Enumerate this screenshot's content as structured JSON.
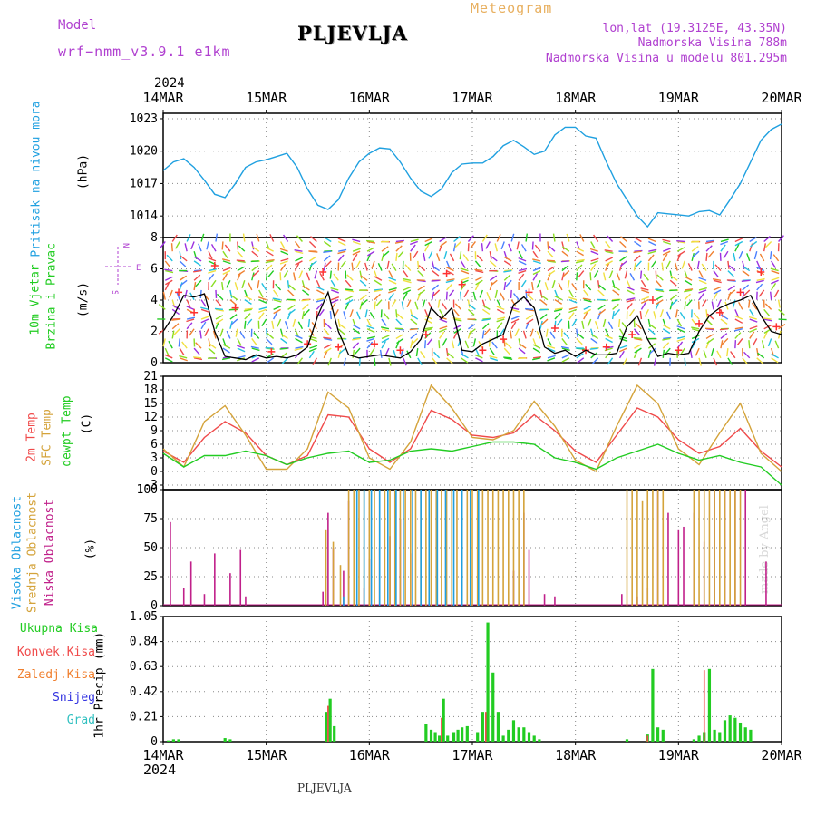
{
  "header": {
    "model_label": "Model",
    "model_name": "wrf−nmm_v3.9.1  e1km",
    "station": "PLJEVLJA",
    "chart_kind": "Meteogram",
    "coords": "lon,lat (19.3125E, 43.35N)",
    "elevation": "Nadmorska Visina 788m",
    "model_elevation": "Nadmorska Visina u modelu 801.295m",
    "year_top": "2024",
    "year_bottom": "2024",
    "footer_station": "PLJEVLJA",
    "signature": "made by Angel"
  },
  "colors": {
    "pressure": "#1fa0e0",
    "temp2m": "#f04a4a",
    "sfc": "#d4a33a",
    "dewpt": "#22cc22",
    "high_cloud": "#1fa0e0",
    "mid_cloud": "#d4a33a",
    "low_cloud": "#c0208a",
    "total_precip": "#22cc22",
    "conv_precip": "#f04a4a",
    "frz_precip": "#f08030",
    "snow": "#3030e0",
    "grad": "#30c0c0",
    "magenta_text": "#b040d0",
    "orange_text": "#e8b060"
  },
  "chart_data": [
    {
      "panel": "pressure",
      "type": "line",
      "ylabel_a": "Pritisak na nivou mora",
      "ylabel_b": "(hPa)",
      "x_ticks_top": [
        "14MAR",
        "15MAR",
        "16MAR",
        "17MAR",
        "18MAR",
        "19MAR",
        "20MAR"
      ],
      "ylim": [
        1012,
        1023.5
      ],
      "yticks": [
        1014,
        1017,
        1020,
        1023
      ],
      "grid": true,
      "series": [
        {
          "x": [
            0,
            0.1,
            0.2,
            0.3,
            0.4,
            0.5,
            0.6,
            0.7,
            0.8,
            0.9,
            1.0,
            1.1,
            1.2,
            1.3,
            1.4,
            1.5,
            1.6,
            1.7,
            1.8,
            1.9,
            2.0,
            2.1,
            2.2,
            2.3,
            2.4,
            2.5,
            2.6,
            2.7,
            2.8,
            2.9,
            3.0,
            3.1,
            3.2,
            3.3,
            3.4,
            3.5,
            3.6,
            3.7,
            3.8,
            3.9,
            4.0,
            4.1,
            4.2,
            4.3,
            4.4,
            4.5,
            4.6,
            4.7,
            4.8,
            4.9,
            5.0,
            5.1,
            5.2,
            5.3,
            5.4,
            5.5,
            5.6,
            5.7,
            5.8,
            5.9,
            6.0
          ],
          "y": [
            1018.2,
            1019.0,
            1019.3,
            1018.5,
            1017.3,
            1016.0,
            1015.7,
            1017.0,
            1018.5,
            1019.0,
            1019.2,
            1019.5,
            1019.8,
            1018.5,
            1016.5,
            1015.0,
            1014.6,
            1015.5,
            1017.5,
            1019.0,
            1019.8,
            1020.3,
            1020.2,
            1019.0,
            1017.5,
            1016.3,
            1015.8,
            1016.5,
            1018.0,
            1018.8,
            1018.9,
            1018.9,
            1019.5,
            1020.5,
            1021.0,
            1020.4,
            1019.7,
            1020.0,
            1021.5,
            1022.2,
            1022.2,
            1021.4,
            1021.2,
            1019.0,
            1017.0,
            1015.5,
            1014.0,
            1013.0,
            1014.3,
            1014.2,
            1014.1,
            1014.0,
            1014.4,
            1014.5,
            1014.1,
            1015.5,
            1017.0,
            1019.0,
            1021.0,
            1022.0,
            1022.5
          ]
        }
      ]
    },
    {
      "panel": "wind",
      "type": "line",
      "ylabel_a": "10m Vjetar",
      "ylabel_b": "Brzina i Pravac",
      "ylabel_c": "(m/s)",
      "compass": [
        "N",
        "W",
        "E",
        "S"
      ],
      "ylim": [
        0,
        8
      ],
      "yticks": [
        0,
        2,
        4,
        6,
        8
      ],
      "grid": true,
      "series": [
        {
          "name": "speed",
          "x": [
            0,
            0.1,
            0.2,
            0.3,
            0.4,
            0.5,
            0.6,
            0.7,
            0.8,
            0.9,
            1.0,
            1.1,
            1.2,
            1.3,
            1.4,
            1.5,
            1.6,
            1.7,
            1.8,
            1.9,
            2.0,
            2.1,
            2.2,
            2.3,
            2.4,
            2.5,
            2.6,
            2.7,
            2.8,
            2.9,
            3.0,
            3.1,
            3.2,
            3.3,
            3.4,
            3.5,
            3.6,
            3.7,
            3.8,
            3.9,
            4.0,
            4.1,
            4.2,
            4.3,
            4.4,
            4.5,
            4.6,
            4.7,
            4.8,
            4.9,
            5.0,
            5.1,
            5.2,
            5.3,
            5.4,
            5.5,
            5.6,
            5.7,
            5.8,
            5.9,
            6.0
          ],
          "y": [
            2.0,
            3.0,
            4.3,
            4.2,
            4.4,
            2.0,
            0.4,
            0.3,
            0.2,
            0.5,
            0.3,
            0.4,
            0.3,
            0.5,
            1.0,
            3.0,
            4.5,
            2.0,
            0.5,
            0.3,
            0.4,
            0.5,
            0.4,
            0.3,
            0.7,
            1.5,
            3.5,
            2.8,
            3.5,
            0.8,
            0.7,
            1.2,
            1.5,
            1.8,
            3.7,
            4.2,
            3.5,
            1.0,
            0.6,
            0.8,
            0.4,
            0.8,
            0.5,
            0.5,
            0.6,
            2.3,
            3.0,
            1.5,
            0.4,
            0.6,
            0.5,
            0.6,
            2.0,
            3.0,
            3.5,
            3.8,
            4.0,
            4.3,
            3.0,
            2.0,
            1.8
          ]
        },
        {
          "name": "gust",
          "x": [
            0.15,
            0.3,
            0.5,
            0.7,
            1.05,
            1.4,
            1.55,
            1.7,
            2.05,
            2.3,
            2.55,
            2.75,
            2.9,
            3.1,
            3.3,
            3.55,
            3.8,
            4.1,
            4.3,
            4.55,
            4.75,
            5.0,
            5.2,
            5.4,
            5.6,
            5.8,
            5.95
          ],
          "y": [
            4.5,
            3.2,
            6.2,
            3.5,
            0.7,
            1.2,
            5.8,
            1.0,
            1.2,
            0.8,
            1.8,
            5.7,
            5.0,
            0.8,
            1.5,
            4.5,
            2.2,
            0.8,
            1.0,
            1.8,
            4.0,
            0.8,
            2.5,
            3.2,
            4.5,
            5.8,
            2.3
          ]
        }
      ]
    },
    {
      "panel": "temperature",
      "type": "line",
      "ylabel_a": "2m Temp",
      "ylabel_b": "SFC Temp",
      "ylabel_c": "dewpt Temp",
      "ylabel_d": "(C)",
      "ylim": [
        -4,
        21
      ],
      "yticks": [
        -3,
        0,
        3,
        6,
        9,
        12,
        15,
        18,
        21
      ],
      "grid": true,
      "series": [
        {
          "name": "2m Temp",
          "x": [
            0,
            0.2,
            0.4,
            0.6,
            0.8,
            1.0,
            1.2,
            1.4,
            1.6,
            1.8,
            2.0,
            2.2,
            2.4,
            2.6,
            2.8,
            3.0,
            3.2,
            3.4,
            3.6,
            3.8,
            4.0,
            4.2,
            4.4,
            4.6,
            4.8,
            5.0,
            5.2,
            5.4,
            5.6,
            5.8,
            6.0
          ],
          "y": [
            4.5,
            2.0,
            7.5,
            11.0,
            8.5,
            3.5,
            1.5,
            3.5,
            12.5,
            12.0,
            5.0,
            2.0,
            5.0,
            13.5,
            11.5,
            8.0,
            7.5,
            8.5,
            12.5,
            9.0,
            4.5,
            2.0,
            8.0,
            14.0,
            12.0,
            7.0,
            4.0,
            5.5,
            9.5,
            4.5,
            1.0
          ]
        },
        {
          "name": "SFC Temp",
          "x": [
            0,
            0.2,
            0.4,
            0.6,
            0.8,
            1.0,
            1.2,
            1.4,
            1.6,
            1.8,
            2.0,
            2.2,
            2.4,
            2.6,
            2.8,
            3.0,
            3.2,
            3.4,
            3.6,
            3.8,
            4.0,
            4.2,
            4.4,
            4.6,
            4.8,
            5.0,
            5.2,
            5.4,
            5.6,
            5.8,
            6.0
          ],
          "y": [
            5.0,
            1.0,
            11.0,
            14.5,
            8.0,
            0.5,
            0.5,
            5.0,
            17.5,
            14.0,
            3.0,
            0.5,
            6.5,
            19.0,
            14.0,
            7.5,
            7.0,
            9.0,
            15.5,
            10.0,
            2.5,
            0.0,
            10.0,
            19.0,
            15.0,
            5.0,
            1.5,
            8.5,
            15.0,
            4.0,
            0.0
          ]
        },
        {
          "name": "dewpt Temp",
          "x": [
            0,
            0.2,
            0.4,
            0.6,
            0.8,
            1.0,
            1.2,
            1.4,
            1.6,
            1.8,
            2.0,
            2.2,
            2.4,
            2.6,
            2.8,
            3.0,
            3.2,
            3.4,
            3.6,
            3.8,
            4.0,
            4.2,
            4.4,
            4.6,
            4.8,
            5.0,
            5.2,
            5.4,
            5.6,
            5.8,
            6.0
          ],
          "y": [
            4.0,
            1.0,
            3.5,
            3.5,
            4.5,
            3.5,
            1.5,
            3.0,
            4.0,
            4.5,
            2.0,
            2.5,
            4.5,
            5.0,
            4.5,
            5.5,
            6.5,
            6.5,
            6.0,
            3.0,
            2.0,
            0.5,
            3.0,
            4.5,
            6.0,
            4.0,
            2.5,
            3.5,
            2.0,
            1.0,
            -3.0
          ]
        }
      ]
    },
    {
      "panel": "clouds",
      "type": "bar",
      "ylabel_a": "Visoka Oblacnost",
      "ylabel_b": "Srednja Oblacnost",
      "ylabel_c": "Niska Oblacnost",
      "ylabel_d": "(%)",
      "ylim": [
        0,
        100
      ],
      "yticks": [
        0,
        25,
        50,
        75,
        100
      ],
      "grid": true,
      "series": [
        {
          "name": "Niska Oblacnost",
          "x": [
            0.07,
            0.2,
            0.27,
            0.4,
            0.5,
            0.65,
            0.75,
            0.8,
            1.55,
            1.6,
            1.65,
            1.75,
            1.8,
            1.95,
            2.0,
            2.1,
            2.2,
            2.3,
            2.4,
            3.4,
            3.5,
            3.55,
            3.7,
            3.8,
            4.45,
            4.6,
            4.7,
            4.8,
            4.9,
            5.0,
            5.05,
            5.15,
            5.25,
            5.35,
            5.45,
            5.55,
            5.65,
            5.85
          ],
          "values": [
            72,
            15,
            38,
            10,
            45,
            28,
            48,
            8,
            12,
            80,
            50,
            30,
            90,
            15,
            40,
            50,
            60,
            75,
            45,
            30,
            80,
            48,
            10,
            8,
            10,
            8,
            15,
            100,
            80,
            65,
            68,
            80,
            55,
            100,
            100,
            100,
            100,
            38
          ]
        },
        {
          "name": "Srednja Oblacnost",
          "x": [
            1.58,
            1.65,
            1.72,
            1.8,
            1.85,
            1.9,
            1.95,
            2.0,
            2.05,
            2.1,
            2.15,
            2.2,
            2.25,
            2.3,
            2.35,
            2.4,
            2.45,
            2.5,
            2.55,
            2.6,
            2.65,
            2.7,
            2.75,
            2.8,
            2.85,
            2.9,
            2.95,
            3.0,
            3.05,
            3.1,
            3.15,
            3.2,
            3.25,
            3.3,
            3.35,
            3.4,
            3.45,
            3.5,
            4.5,
            4.55,
            4.6,
            4.65,
            4.7,
            4.75,
            4.8,
            4.85,
            5.15,
            5.2,
            5.25,
            5.3,
            5.35,
            5.4,
            5.45,
            5.5,
            5.55,
            5.6
          ],
          "values": [
            65,
            55,
            35,
            100,
            100,
            100,
            100,
            100,
            100,
            100,
            100,
            100,
            100,
            100,
            100,
            100,
            100,
            100,
            100,
            100,
            100,
            100,
            100,
            100,
            100,
            100,
            100,
            100,
            100,
            100,
            100,
            100,
            100,
            100,
            100,
            100,
            100,
            100,
            100,
            100,
            100,
            90,
            100,
            100,
            100,
            100,
            100,
            100,
            100,
            100,
            100,
            100,
            100,
            100,
            100,
            100
          ]
        },
        {
          "name": "Visoka Oblacnost",
          "x": [
            1.75,
            1.88,
            1.95,
            2.02,
            2.1,
            2.18,
            2.26,
            2.33,
            2.42,
            2.5,
            2.58,
            2.66,
            2.74,
            2.82,
            2.9,
            2.98,
            3.06
          ],
          "values": [
            8,
            100,
            100,
            100,
            100,
            100,
            100,
            100,
            100,
            100,
            100,
            100,
            100,
            100,
            100,
            100,
            100
          ]
        }
      ]
    },
    {
      "panel": "precip",
      "type": "bar",
      "ylabel_a": "1hr Precip",
      "ylabel_b": "(mm)",
      "legend": [
        "Ukupna Kisa",
        "Konvek.Kisa",
        "Zaledj.Kisa",
        "Snijeg",
        "Grad"
      ],
      "x_ticks_bottom": [
        "14MAR",
        "15MAR",
        "16MAR",
        "17MAR",
        "18MAR",
        "19MAR",
        "20MAR"
      ],
      "ylim": [
        0,
        1.05
      ],
      "yticks": [
        0,
        0.21,
        0.42,
        0.63,
        0.84,
        1.05
      ],
      "grid": true,
      "series": [
        {
          "name": "Ukupna Kisa",
          "x": [
            0.05,
            0.1,
            0.15,
            0.6,
            0.65,
            1.58,
            1.62,
            1.66,
            2.55,
            2.6,
            2.64,
            2.68,
            2.72,
            2.76,
            2.82,
            2.86,
            2.9,
            2.95,
            3.05,
            3.1,
            3.15,
            3.2,
            3.25,
            3.3,
            3.35,
            3.4,
            3.45,
            3.5,
            3.55,
            3.6,
            3.65,
            4.5,
            4.7,
            4.75,
            4.8,
            4.85,
            5.15,
            5.2,
            5.25,
            5.3,
            5.35,
            5.4,
            5.45,
            5.5,
            5.55,
            5.6,
            5.65,
            5.7
          ],
          "values": [
            0.01,
            0.02,
            0.02,
            0.03,
            0.02,
            0.25,
            0.36,
            0.13,
            0.15,
            0.1,
            0.08,
            0.05,
            0.36,
            0.05,
            0.08,
            0.1,
            0.12,
            0.13,
            0.08,
            0.25,
            1.0,
            0.58,
            0.25,
            0.05,
            0.1,
            0.18,
            0.12,
            0.12,
            0.08,
            0.05,
            0.02,
            0.02,
            0.06,
            0.61,
            0.12,
            0.1,
            0.02,
            0.05,
            0.08,
            0.61,
            0.1,
            0.08,
            0.18,
            0.22,
            0.2,
            0.16,
            0.12,
            0.1
          ]
        },
        {
          "name": "Konvek.Kisa",
          "x": [
            1.6,
            2.7,
            3.13,
            4.7,
            5.25
          ],
          "values": [
            0.3,
            0.2,
            0.25,
            0.05,
            0.6
          ]
        }
      ]
    }
  ]
}
